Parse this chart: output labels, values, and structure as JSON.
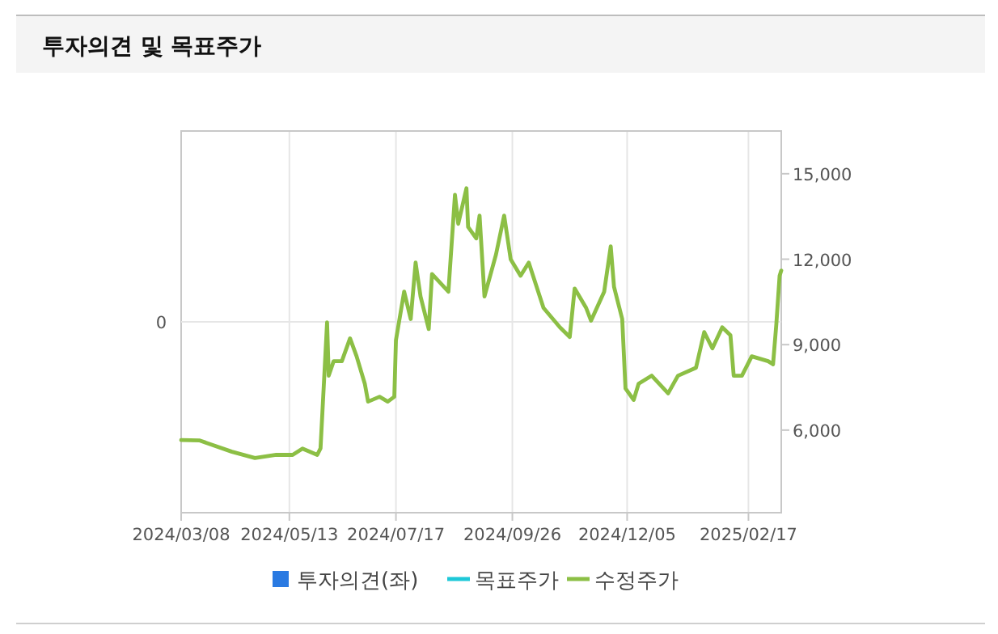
{
  "chart_data": {
    "type": "line",
    "title": "투자의견 및 목표주가",
    "xlim": [
      "2024-03-08",
      "2025-03-09"
    ],
    "xticks": [
      {
        "value": "2024-03-08",
        "label": "2024/03/08"
      },
      {
        "value": "2024-05-13",
        "label": "2024/05/13"
      },
      {
        "value": "2024-07-17",
        "label": "2024/07/17"
      },
      {
        "value": "2024-09-26",
        "label": "2024/09/26"
      },
      {
        "value": "2024-12-05",
        "label": "2024/12/05"
      },
      {
        "value": "2025-02-17",
        "label": "2025/02/17"
      }
    ],
    "y2lim": [
      3100,
      16500
    ],
    "y2ticks": [
      {
        "value": 6000,
        "label": "6,000"
      },
      {
        "value": 9000,
        "label": "9,000"
      },
      {
        "value": 12000,
        "label": "12,000"
      },
      {
        "value": 15000,
        "label": "15,000"
      }
    ],
    "annotations": [
      "0"
    ],
    "grid": "x",
    "legend": "bottom",
    "marker": "none",
    "line_style": "solid",
    "series": [
      {
        "name": "투자의견(좌)",
        "type": "bar",
        "color": "#2a7ae2"
      },
      {
        "name": "목표주가",
        "axis": "y2",
        "color": "#1ec8d8"
      },
      {
        "name": "수정주가",
        "axis": "y2",
        "color": "#8cbf45",
        "x": [
          "2024-03-08",
          "2024-03-19",
          "2024-04-08",
          "2024-04-22",
          "2024-05-05",
          "2024-05-15",
          "2024-05-21",
          "2024-05-30",
          "2024-06-01",
          "2024-06-05",
          "2024-06-06",
          "2024-06-09",
          "2024-06-14",
          "2024-06-19",
          "2024-06-23",
          "2024-06-28",
          "2024-06-30",
          "2024-07-07",
          "2024-07-12",
          "2024-07-16",
          "2024-07-17",
          "2024-07-22",
          "2024-07-26",
          "2024-07-29",
          "2024-08-01",
          "2024-08-06",
          "2024-08-08",
          "2024-08-18",
          "2024-08-22",
          "2024-08-24",
          "2024-08-29",
          "2024-08-30",
          "2024-09-04",
          "2024-09-06",
          "2024-09-09",
          "2024-09-16",
          "2024-09-21",
          "2024-09-25",
          "2024-10-01",
          "2024-10-06",
          "2024-10-15",
          "2024-10-25",
          "2024-10-31",
          "2024-11-03",
          "2024-11-10",
          "2024-11-13",
          "2024-11-21",
          "2024-11-25",
          "2024-11-27",
          "2024-12-02",
          "2024-12-04",
          "2024-12-09",
          "2024-12-12",
          "2024-12-20",
          "2024-12-30",
          "2025-01-05",
          "2025-01-16",
          "2025-01-21",
          "2025-01-26",
          "2025-02-01",
          "2025-02-06",
          "2025-02-08",
          "2025-02-13",
          "2025-02-19",
          "2025-03-01",
          "2025-03-04",
          "2025-03-06",
          "2025-03-08",
          "2025-03-09"
        ],
        "values": [
          5650,
          5640,
          5240,
          5020,
          5130,
          5130,
          5350,
          5130,
          5360,
          9780,
          7910,
          8420,
          8420,
          9220,
          8590,
          7630,
          7000,
          7170,
          7000,
          7170,
          9160,
          10860,
          9900,
          11880,
          10690,
          9550,
          11480,
          10860,
          14260,
          13240,
          14490,
          13130,
          12730,
          13530,
          10690,
          12160,
          13530,
          11990,
          11420,
          11880,
          10290,
          9610,
          9270,
          10970,
          10290,
          9840,
          10860,
          12450,
          11030,
          9900,
          7460,
          7060,
          7630,
          7910,
          7290,
          7910,
          8190,
          9440,
          8870,
          9610,
          9330,
          7910,
          7910,
          8590,
          8420,
          8310,
          9720,
          11420,
          11600
        ]
      }
    ]
  }
}
